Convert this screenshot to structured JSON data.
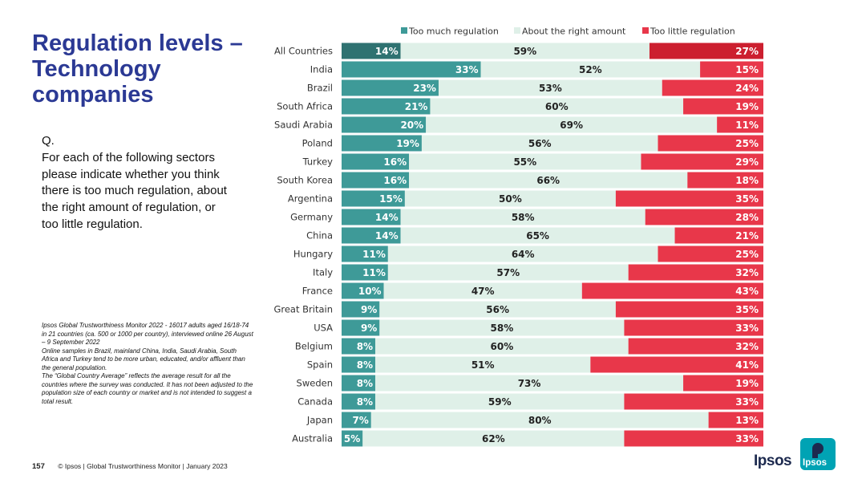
{
  "page": {
    "title": "Regulation levels – Technology companies",
    "question_prefix": "Q.",
    "question_text": "For each of the following sectors please indicate whether you think there is too much regulation, about the right amount of regulation, or too little regulation.",
    "notes": [
      "Ipsos Global Trustworthiness Monitor 2022 - 16017 adults aged 16/18-74 in 21 countries (ca. 500 or 1000 per country), interviewed online 26 August – 9 September 2022",
      "Online samples in Brazil, mainland China, India, Saudi Arabia, South Africa and Turkey tend to be more urban, educated, and/or affluent than the general population.",
      "The “Global Country Average” reflects the average result for all the countries where the survey was conducted. It has not been adjusted to the population size of each country or market and is not intended to suggest a total result."
    ],
    "page_number": "157",
    "footer_text": "© Ipsos | Global Trustworthiness Monitor | January 2023",
    "logo_text": "Ipsos",
    "logo_badge_text": "Ipsos"
  },
  "colors": {
    "too_much": "#3e9a98",
    "too_much_highlight": "#2f7271",
    "about_right": "#dff0e8",
    "too_little": "#e8374a",
    "too_little_highlight": "#cc1f2f",
    "title": "#2b3994"
  },
  "chart_data": {
    "type": "bar",
    "orientation": "horizontal",
    "stacked": true,
    "legend_position": "top",
    "categories": [
      "All Countries",
      "India",
      "Brazil",
      "South Africa",
      "Saudi Arabia",
      "Poland",
      "Turkey",
      "South Korea",
      "Argentina",
      "Germany",
      "China",
      "Hungary",
      "Italy",
      "France",
      "Great Britain",
      "USA",
      "Belgium",
      "Spain",
      "Sweden",
      "Canada",
      "Japan",
      "Australia"
    ],
    "series": [
      {
        "name": "Too much regulation",
        "key": "too_much",
        "values": [
          14,
          33,
          23,
          21,
          20,
          19,
          16,
          16,
          15,
          14,
          14,
          11,
          11,
          10,
          9,
          9,
          8,
          8,
          8,
          8,
          7,
          5
        ]
      },
      {
        "name": "About the right amount",
        "key": "about_right",
        "values": [
          59,
          52,
          53,
          60,
          69,
          56,
          55,
          66,
          50,
          58,
          65,
          64,
          57,
          47,
          56,
          58,
          60,
          51,
          73,
          59,
          80,
          62
        ]
      },
      {
        "name": "Too little regulation",
        "key": "too_little",
        "values": [
          27,
          15,
          24,
          19,
          11,
          25,
          29,
          18,
          35,
          28,
          21,
          25,
          32,
          43,
          35,
          33,
          32,
          41,
          19,
          33,
          13,
          33
        ]
      }
    ],
    "value_suffix": "%",
    "highlight_category": "All Countries"
  }
}
